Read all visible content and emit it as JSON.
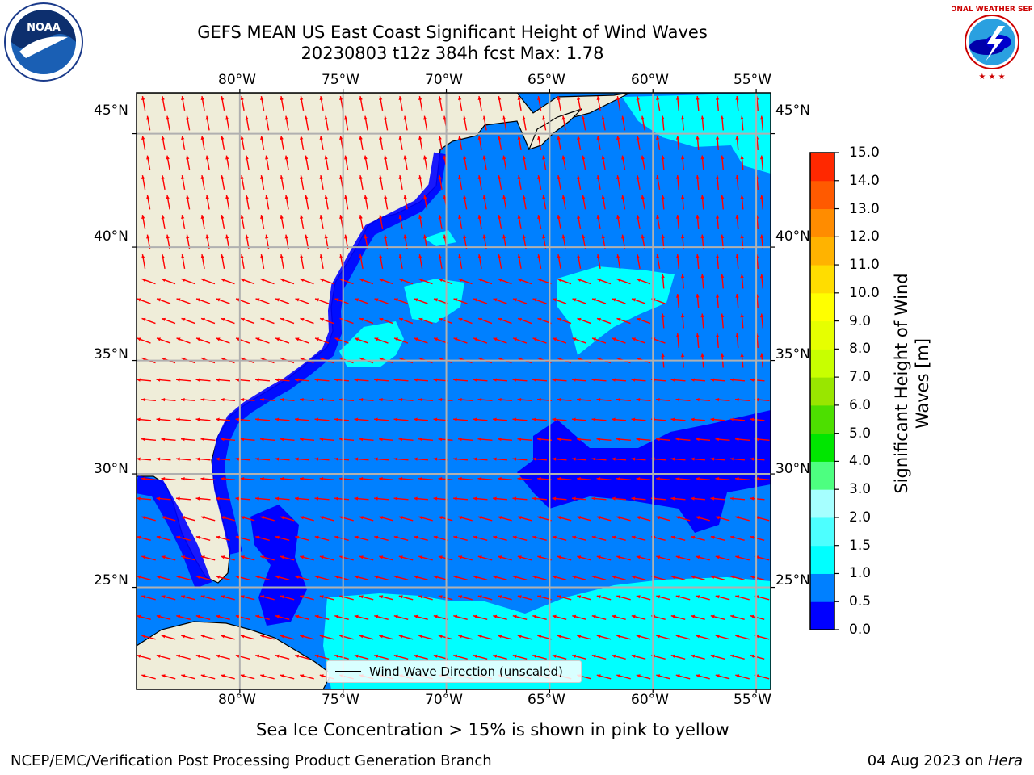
{
  "header": {
    "title_line1": "GEFS MEAN US East Coast Significant Height of Wind Waves",
    "title_line2": "20230803 t12z 384h fcst    Max: 1.78"
  },
  "logos": {
    "left": {
      "icon": "noaa-logo-icon",
      "text": "NOAA"
    },
    "right": {
      "icon": "nws-logo-icon",
      "text": "NATIONAL WEATHER SERVICE"
    }
  },
  "chart_data": {
    "type": "map",
    "lon_ticks": [
      "80°W",
      "75°W",
      "70°W",
      "65°W",
      "60°W",
      "55°W"
    ],
    "lon_values": [
      -80,
      -75,
      -70,
      -65,
      -60,
      -55
    ],
    "lat_ticks": [
      "45°N",
      "40°N",
      "35°N",
      "30°N",
      "25°N"
    ],
    "lat_values": [
      45,
      40,
      35,
      30,
      25
    ],
    "lon_range": [
      -85,
      -54.3
    ],
    "lat_range": [
      20.5,
      46.8
    ],
    "grid": true,
    "legend": {
      "label": "Wind Wave Direction (unscaled)",
      "placement": "bottom-center"
    },
    "colorbar": {
      "label": "Significant Height of Wind Waves [m]",
      "levels": [
        0.0,
        0.5,
        1.0,
        1.5,
        2.0,
        3.0,
        4.0,
        5.0,
        6.0,
        7.0,
        8.0,
        9.0,
        10.0,
        11.0,
        12.0,
        13.0,
        14.0,
        15.0
      ],
      "tick_labels": [
        "0.0",
        "0.5",
        "1.0",
        "1.5",
        "2.0",
        "3.0",
        "4.0",
        "5.0",
        "6.0",
        "7.0",
        "8.0",
        "9.0",
        "10.0",
        "11.0",
        "12.0",
        "13.0",
        "14.0",
        "15.0"
      ],
      "colors": [
        "#0000ff",
        "#0080ff",
        "#00ffff",
        "#4dffff",
        "#a6ffff",
        "#4dff80",
        "#00e600",
        "#4ddf00",
        "#99e600",
        "#c8ff00",
        "#e6ff00",
        "#ffff00",
        "#ffdd00",
        "#ffb300",
        "#ff8c00",
        "#ff5a00",
        "#ff2800",
        "#ff0000"
      ]
    },
    "colors": {
      "land": "#efedd9",
      "ocean_main": "#0080ff",
      "arrow": "#ff0000",
      "grid": "#b0b0b0",
      "coast": "#000000"
    }
  },
  "subtitle": "Sea Ice Concentration > 15% is shown in pink to yellow",
  "footer": {
    "left": "NCEP/EMC/Verification Post Processing Product Generation Branch",
    "right_date": "04 Aug 2023 on ",
    "right_host": "Hera"
  }
}
